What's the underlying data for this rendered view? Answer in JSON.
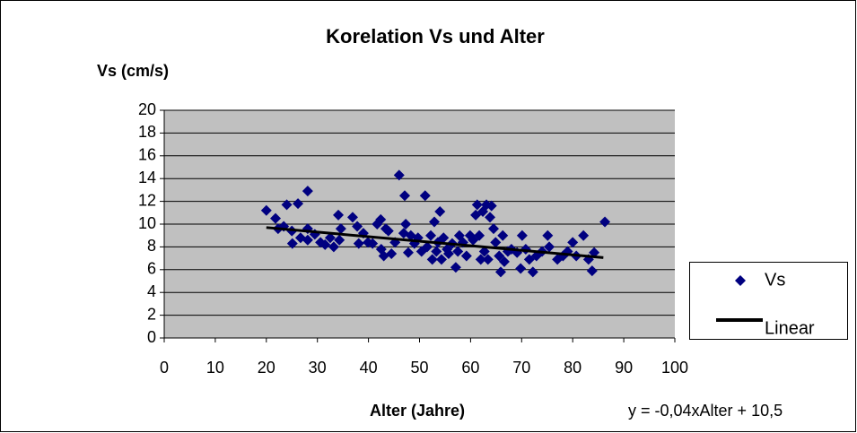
{
  "chart_data": {
    "type": "scatter",
    "title": "Korelation Vs und Alter",
    "y_label": "Vs (cm/s)",
    "x_label": "Alter (Jahre)",
    "annotation": "y = -0,04xAlter + 10,5",
    "xlim": [
      0,
      100
    ],
    "xticks": [
      0,
      10,
      20,
      30,
      40,
      50,
      60,
      70,
      80,
      90,
      100
    ],
    "ylim": [
      0,
      20
    ],
    "yticks": [
      0,
      2,
      4,
      6,
      8,
      10,
      12,
      14,
      16,
      18,
      20
    ],
    "grid": true,
    "legend": "right",
    "series": [
      {
        "name": "Vs",
        "color": "#000080",
        "x": [
          20,
          21.8,
          22.3,
          23.4,
          24,
          25,
          25.1,
          26.2,
          26.7,
          28.1,
          28.1,
          28.1,
          29.5,
          30.6,
          31.5,
          32.5,
          33.2,
          34.1,
          34.3,
          34.6,
          36.9,
          37.8,
          38.1,
          39,
          39.9,
          40.8,
          41.7,
          42.4,
          42.5,
          43,
          43.4,
          43.9,
          44.5,
          45.2,
          46,
          46.9,
          47.1,
          47.3,
          47.8,
          48.3,
          49,
          49.7,
          50.4,
          51.1,
          51.5,
          52.2,
          52.5,
          52.9,
          53.3,
          53.6,
          54,
          54.3,
          54.7,
          55.4,
          55.7,
          56.4,
          57.1,
          57.5,
          57.8,
          58.5,
          59.2,
          59.9,
          60.5,
          61,
          61.3,
          61.7,
          62,
          62.4,
          62.7,
          63.1,
          63.4,
          63.8,
          64.1,
          64.5,
          64.9,
          65.6,
          65.9,
          66.3,
          66.6,
          67.3,
          68,
          69.1,
          69.8,
          70.1,
          70.8,
          71.5,
          72.2,
          72.9,
          74,
          75.1,
          75.4,
          77,
          78.1,
          79,
          80,
          80.7,
          82.1,
          83.1,
          83.8,
          84.2,
          86.3
        ],
        "values": [
          11.2,
          10.5,
          9.6,
          9.8,
          11.7,
          9.4,
          8.3,
          11.8,
          8.8,
          12.9,
          9.6,
          8.6,
          9.1,
          8.4,
          8.2,
          8.8,
          8,
          10.8,
          8.6,
          9.6,
          10.6,
          9.8,
          8.3,
          9.2,
          8.4,
          8.3,
          10,
          10.4,
          7.8,
          7.2,
          9.6,
          9.4,
          7.4,
          8.4,
          14.3,
          9.2,
          12.5,
          10,
          7.5,
          9,
          8.3,
          8.8,
          7.6,
          12.5,
          8,
          9,
          6.9,
          10.2,
          7.6,
          8.4,
          11.1,
          6.9,
          8.8,
          7.8,
          7.4,
          8.3,
          6.2,
          7.6,
          9,
          8.4,
          7.2,
          9,
          8.6,
          10.8,
          11.7,
          9,
          6.9,
          11.1,
          7.6,
          11.7,
          6.9,
          10.6,
          11.6,
          9.6,
          8.4,
          7.2,
          5.8,
          9,
          6.7,
          7.6,
          7.8,
          7.5,
          6.1,
          9,
          7.8,
          6.9,
          5.8,
          7.2,
          7.6,
          9,
          8,
          6.9,
          7.2,
          7.6,
          8.4,
          7.2,
          9,
          6.9,
          5.9,
          7.5,
          10.2
        ]
      },
      {
        "name": "Linear",
        "color": "#000000",
        "line": true,
        "x": [
          20,
          86
        ],
        "values": [
          9.7,
          7.06
        ]
      }
    ]
  }
}
